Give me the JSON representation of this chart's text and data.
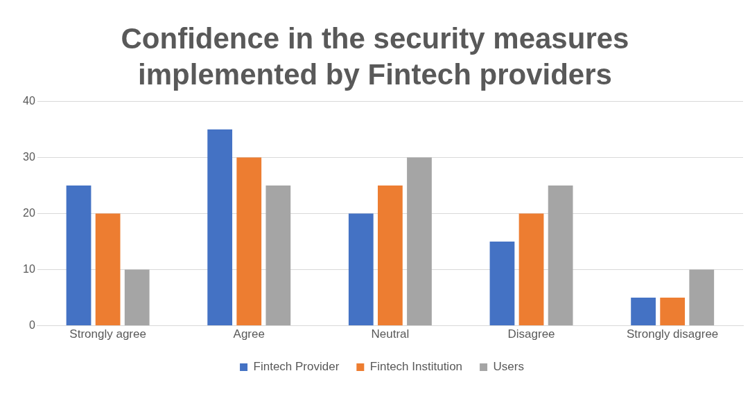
{
  "chart_data": {
    "type": "bar",
    "title": "Confidence in the security measures implemented by Fintech providers",
    "categories": [
      "Strongly agree",
      "Agree",
      "Neutral",
      "Disagree",
      "Strongly disagree"
    ],
    "series": [
      {
        "name": "Fintech Provider",
        "color": "#4472c4",
        "values": [
          25,
          35,
          20,
          15,
          5
        ]
      },
      {
        "name": "Fintech Institution",
        "color": "#ed7d31",
        "values": [
          20,
          30,
          25,
          20,
          5
        ]
      },
      {
        "name": "Users",
        "color": "#a5a5a5",
        "values": [
          10,
          25,
          30,
          25,
          10
        ]
      }
    ],
    "ylim": [
      0,
      40
    ],
    "yticks": [
      0,
      10,
      20,
      30,
      40
    ],
    "grid": "y",
    "legend": "bottom"
  }
}
